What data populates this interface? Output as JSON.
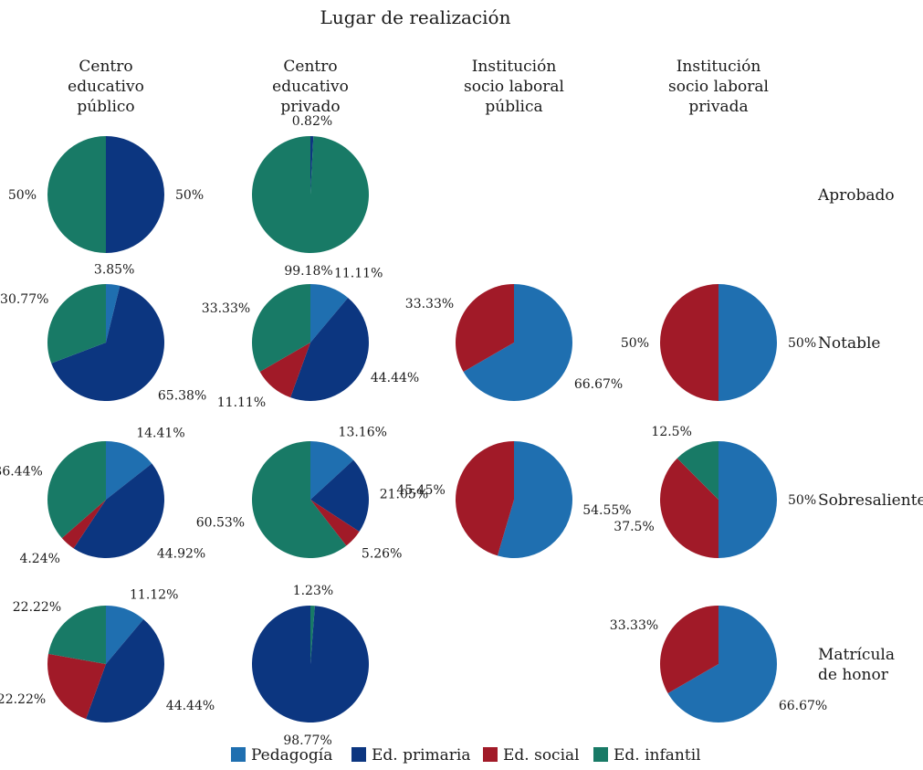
{
  "chart_data": {
    "type": "pie",
    "title": "Lugar de realización",
    "colors": {
      "Pedagogía": "#1f6fb0",
      "Ed. primaria": "#0c3680",
      "Ed. social": "#a11a28",
      "Ed. infantil": "#187a66"
    },
    "columns": [
      {
        "lines": [
          "Centro",
          "educativo",
          "público"
        ]
      },
      {
        "lines": [
          "Centro",
          "educativo",
          "privado"
        ]
      },
      {
        "lines": [
          "Institución",
          "socio laboral",
          "pública"
        ]
      },
      {
        "lines": [
          "Institución",
          "socio laboral",
          "privada"
        ]
      }
    ],
    "rows": [
      {
        "lines": [
          "Aprobado"
        ]
      },
      {
        "lines": [
          "Notable"
        ]
      },
      {
        "lines": [
          "Sobresaliente"
        ]
      },
      {
        "lines": [
          "Matrícula",
          "de honor"
        ]
      }
    ],
    "legend": [
      "Pedagogía",
      "Ed. primaria",
      "Ed. social",
      "Ed. infantil"
    ],
    "pies": [
      {
        "row": 0,
        "col": 0,
        "slices": [
          {
            "category": "Ed. primaria",
            "value": 50,
            "label": "50%"
          },
          {
            "category": "Ed. infantil",
            "value": 50,
            "label": "50%"
          }
        ]
      },
      {
        "row": 0,
        "col": 1,
        "slices": [
          {
            "category": "Ed. primaria",
            "value": 0.82,
            "label": "0.82%"
          },
          {
            "category": "Ed. infantil",
            "value": 99.18,
            "label": "99.18%"
          }
        ]
      },
      {
        "row": 1,
        "col": 0,
        "slices": [
          {
            "category": "Pedagogía",
            "value": 3.85,
            "label": "3.85%"
          },
          {
            "category": "Ed. primaria",
            "value": 65.38,
            "label": "65.38%"
          },
          {
            "category": "Ed. infantil",
            "value": 30.77,
            "label": "30.77%"
          }
        ]
      },
      {
        "row": 1,
        "col": 1,
        "slices": [
          {
            "category": "Pedagogía",
            "value": 11.11,
            "label": "11.11%"
          },
          {
            "category": "Ed. primaria",
            "value": 44.44,
            "label": "44.44%"
          },
          {
            "category": "Ed. social",
            "value": 11.11,
            "label": "11.11%"
          },
          {
            "category": "Ed. infantil",
            "value": 33.33,
            "label": "33.33%"
          }
        ]
      },
      {
        "row": 1,
        "col": 2,
        "slices": [
          {
            "category": "Pedagogía",
            "value": 66.67,
            "label": "66.67%"
          },
          {
            "category": "Ed. social",
            "value": 33.33,
            "label": "33.33%"
          }
        ]
      },
      {
        "row": 1,
        "col": 3,
        "slices": [
          {
            "category": "Pedagogía",
            "value": 50,
            "label": "50%"
          },
          {
            "category": "Ed. social",
            "value": 50,
            "label": "50%"
          }
        ]
      },
      {
        "row": 2,
        "col": 0,
        "slices": [
          {
            "category": "Pedagogía",
            "value": 14.41,
            "label": "14.41%"
          },
          {
            "category": "Ed. primaria",
            "value": 44.92,
            "label": "44.92%"
          },
          {
            "category": "Ed. social",
            "value": 4.24,
            "label": "4.24%"
          },
          {
            "category": "Ed. infantil",
            "value": 36.44,
            "label": "36.44%"
          }
        ]
      },
      {
        "row": 2,
        "col": 1,
        "slices": [
          {
            "category": "Pedagogía",
            "value": 13.16,
            "label": "13.16%"
          },
          {
            "category": "Ed. primaria",
            "value": 21.05,
            "label": "21.05%"
          },
          {
            "category": "Ed. social",
            "value": 5.26,
            "label": "5.26%"
          },
          {
            "category": "Ed. infantil",
            "value": 60.53,
            "label": "60.53%"
          }
        ]
      },
      {
        "row": 2,
        "col": 2,
        "slices": [
          {
            "category": "Pedagogía",
            "value": 54.55,
            "label": "54.55%"
          },
          {
            "category": "Ed. social",
            "value": 45.45,
            "label": "45.45%"
          }
        ]
      },
      {
        "row": 2,
        "col": 3,
        "slices": [
          {
            "category": "Pedagogía",
            "value": 50,
            "label": "50%"
          },
          {
            "category": "Ed. social",
            "value": 37.5,
            "label": "37.5%"
          },
          {
            "category": "Ed. infantil",
            "value": 12.5,
            "label": "12.5%"
          }
        ]
      },
      {
        "row": 3,
        "col": 0,
        "slices": [
          {
            "category": "Pedagogía",
            "value": 11.12,
            "label": "11.12%"
          },
          {
            "category": "Ed. primaria",
            "value": 44.44,
            "label": "44.44%"
          },
          {
            "category": "Ed. social",
            "value": 22.22,
            "label": "22.22%"
          },
          {
            "category": "Ed. infantil",
            "value": 22.22,
            "label": "22.22%"
          }
        ]
      },
      {
        "row": 3,
        "col": 1,
        "slices": [
          {
            "category": "Ed. infantil",
            "value": 1.23,
            "label": "1.23%"
          },
          {
            "category": "Ed. primaria",
            "value": 98.77,
            "label": "98.77%"
          }
        ]
      },
      {
        "row": 3,
        "col": 3,
        "slices": [
          {
            "category": "Pedagogía",
            "value": 66.67,
            "label": "66.67%"
          },
          {
            "category": "Ed. social",
            "value": 33.33,
            "label": "33.33%"
          }
        ]
      }
    ]
  }
}
